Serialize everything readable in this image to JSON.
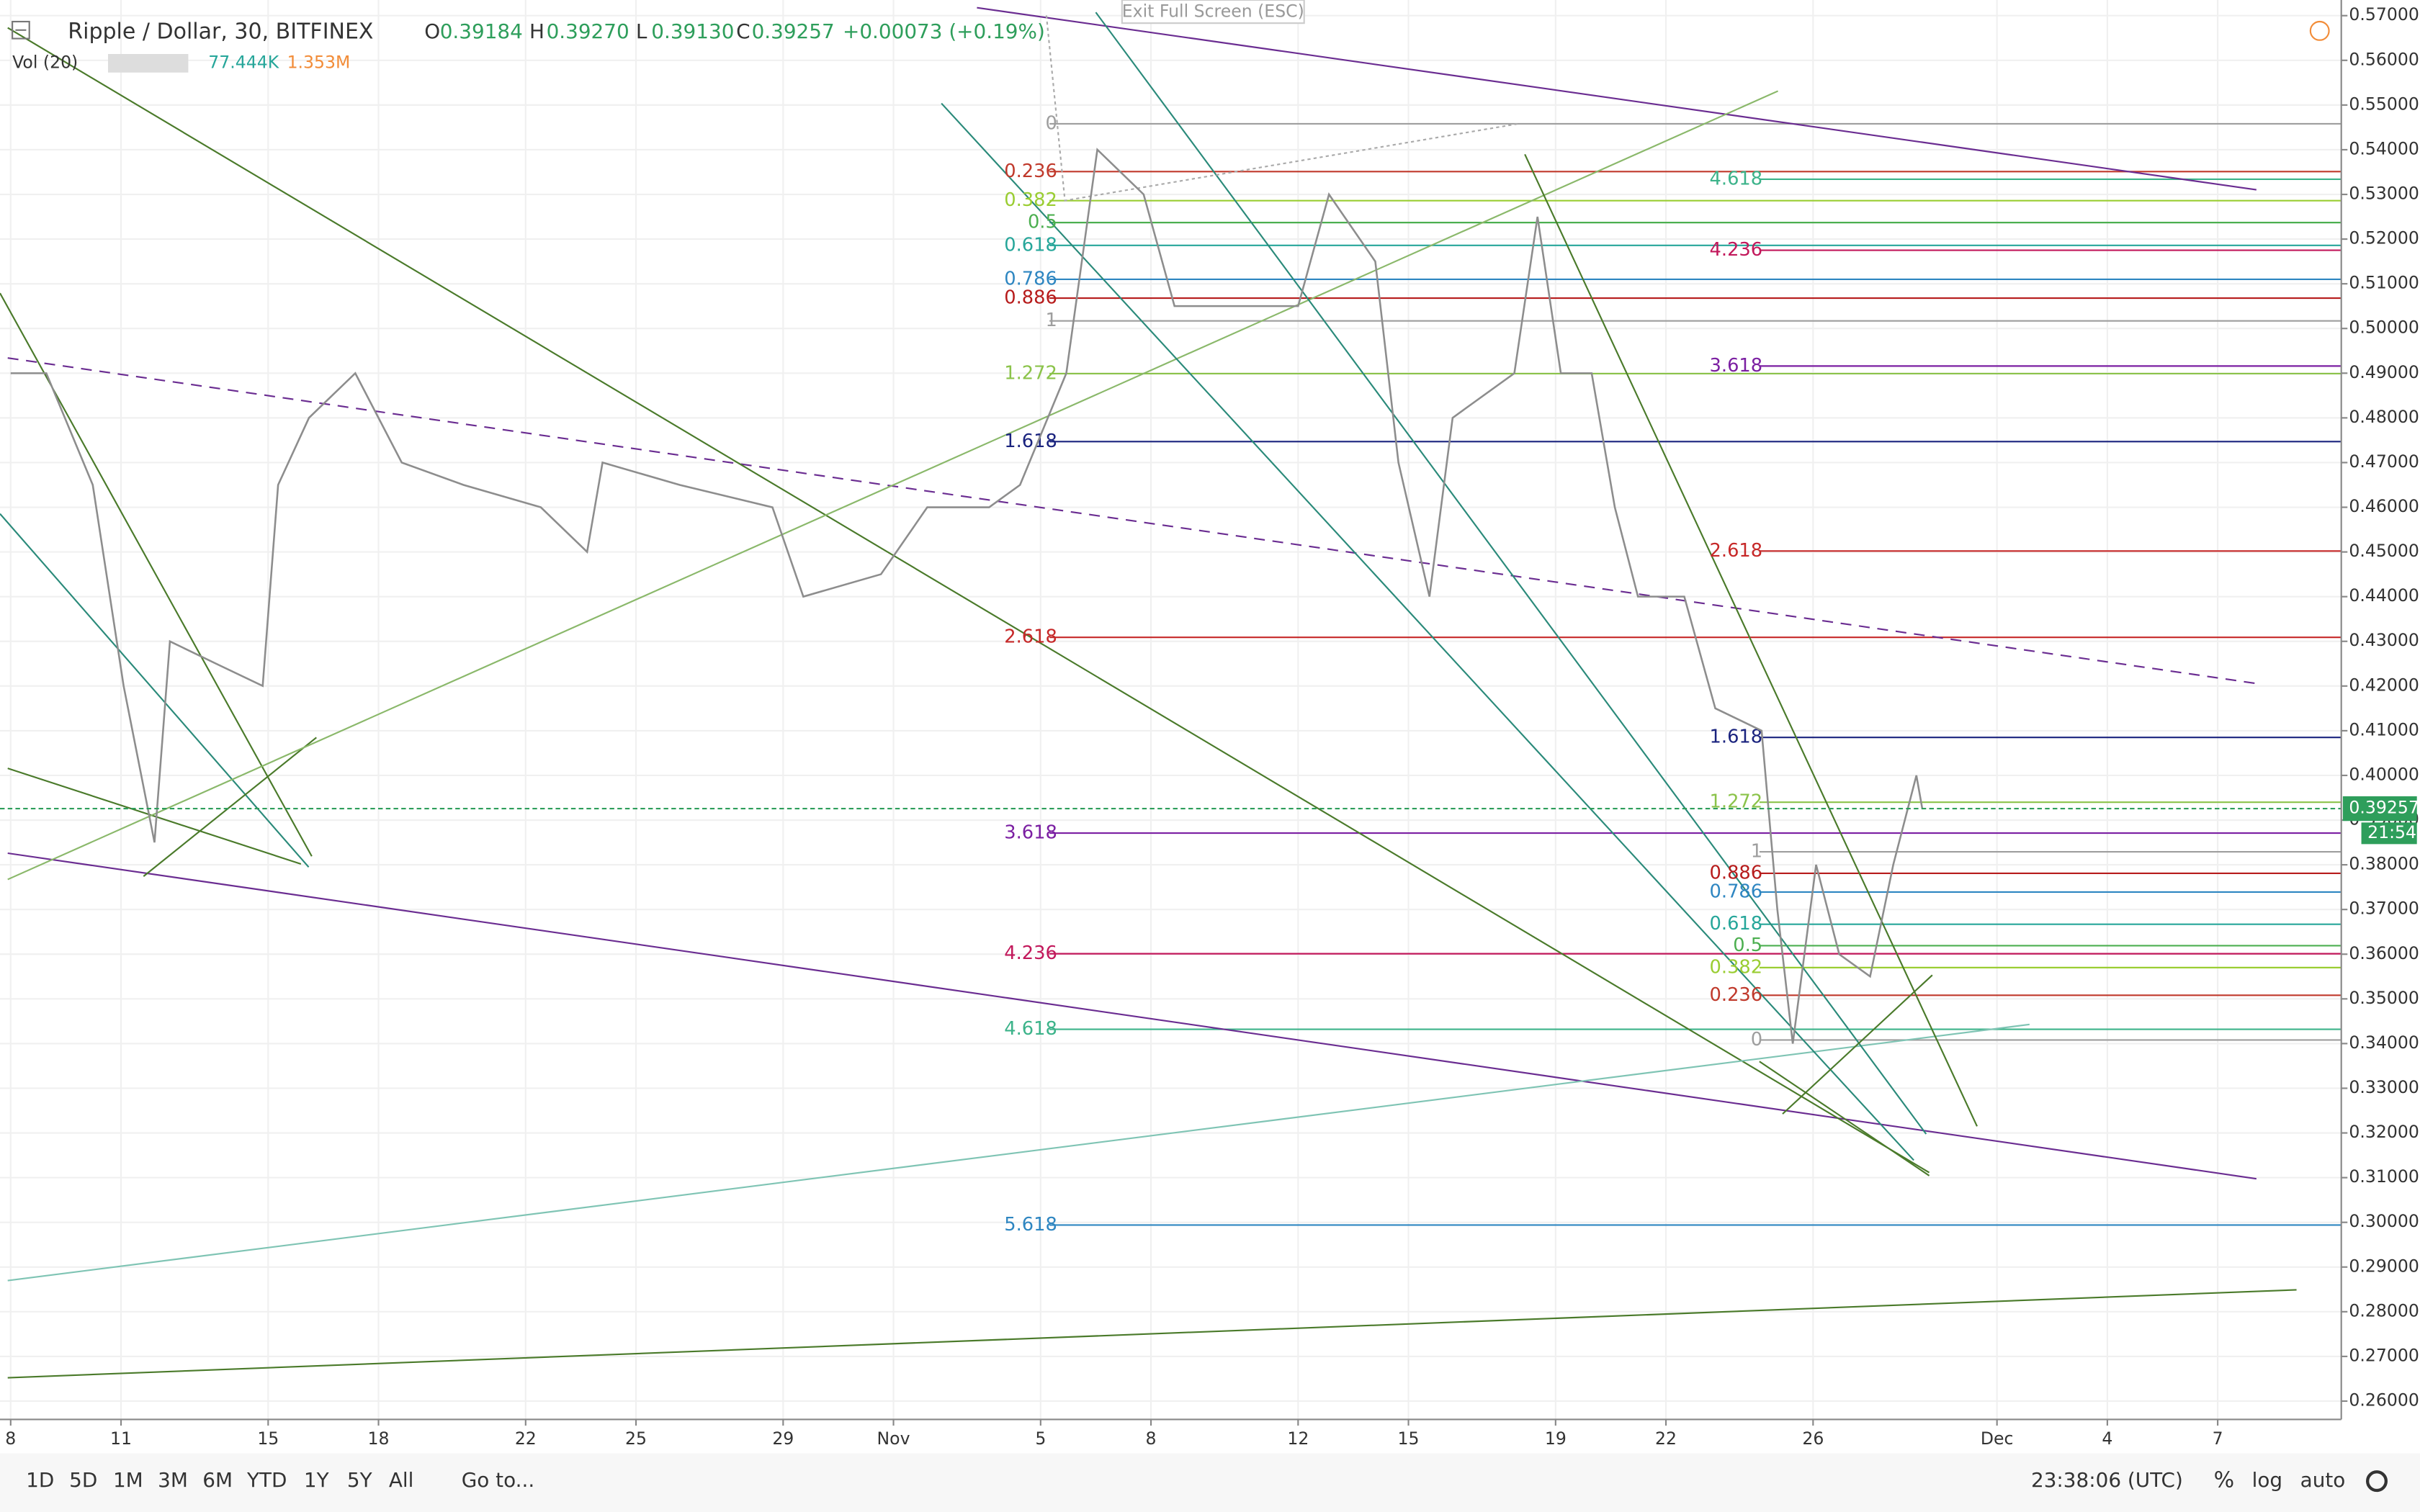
{
  "header": {
    "title": "Ripple / Dollar, 30, BITFINEX",
    "o_label": "O",
    "open": "0.39184",
    "h_label": "H",
    "high": "0.39270",
    "l_label": "L",
    "low": "0.39130",
    "c_label": "C",
    "close": "0.39257",
    "change": "+0.00073 (+0.19%)",
    "vol_label": "Vol (20)",
    "vol_value": "77.444K",
    "vol_ma": "1.353M",
    "exit": "Exit Full Screen (ESC)"
  },
  "chart_data": {
    "type": "line",
    "x": [
      0,
      0.97,
      2.23,
      3.07,
      3.91,
      4.33,
      5.59,
      6.85,
      7.27,
      8.11,
      9.37,
      10.63,
      12.31,
      14.41,
      15.67,
      16.09,
      18.19,
      20.71,
      21.55,
      23.66,
      24.92,
      26.6,
      27.44,
      28.7,
      29.54,
      30.8,
      31.64,
      33.32,
      35.0,
      35.84,
      37.1,
      37.73,
      38.57,
      39.2,
      40.88,
      41.51,
      42.14,
      42.98,
      43.61,
      44.24,
      45.5,
      46.34,
      47.6,
      48.03,
      48.45,
      49.08,
      49.71,
      50.55,
      51.18,
      51.81,
      51.97
    ],
    "series": [
      {
        "color": "#8d8d8d",
        "values": [
          0.49,
          0.49,
          0.465,
          0.42,
          0.385,
          0.43,
          0.425,
          0.42,
          0.465,
          0.48,
          0.49,
          0.47,
          0.465,
          0.46,
          0.45,
          0.47,
          0.465,
          0.46,
          0.44,
          0.445,
          0.46,
          0.46,
          0.465,
          0.49,
          0.54,
          0.53,
          0.505,
          0.505,
          0.505,
          0.53,
          0.515,
          0.47,
          0.44,
          0.48,
          0.49,
          0.525,
          0.49,
          0.49,
          0.46,
          0.44,
          0.44,
          0.415,
          0.41,
          0.37,
          0.34,
          0.38,
          0.36,
          0.355,
          0.38,
          0.4,
          0.39257
        ]
      }
    ],
    "xlim": [
      -0.29,
      63.36
    ],
    "xticks": [
      {
        "value": 0,
        "label": "8"
      },
      {
        "value": 3,
        "label": "11"
      },
      {
        "value": 7,
        "label": "15"
      },
      {
        "value": 10,
        "label": "18"
      },
      {
        "value": 14,
        "label": "22"
      },
      {
        "value": 17,
        "label": "25"
      },
      {
        "value": 21,
        "label": "29"
      },
      {
        "value": 24,
        "label": "Nov"
      },
      {
        "value": 28,
        "label": "5"
      },
      {
        "value": 31,
        "label": "8"
      },
      {
        "value": 35,
        "label": "12"
      },
      {
        "value": 38,
        "label": "15"
      },
      {
        "value": 42,
        "label": "19"
      },
      {
        "value": 45,
        "label": "22"
      },
      {
        "value": 49,
        "label": "26"
      },
      {
        "value": 54,
        "label": "Dec"
      },
      {
        "value": 57,
        "label": "4"
      },
      {
        "value": 60,
        "label": "7"
      }
    ],
    "ylim": [
      0.2559,
      0.5735
    ],
    "yticks": [
      {
        "value": 0.26,
        "label": "0.26000"
      },
      {
        "value": 0.27,
        "label": "0.27000"
      },
      {
        "value": 0.28,
        "label": "0.28000"
      },
      {
        "value": 0.29,
        "label": "0.29000"
      },
      {
        "value": 0.3,
        "label": "0.30000"
      },
      {
        "value": 0.31,
        "label": "0.31000"
      },
      {
        "value": 0.32,
        "label": "0.32000"
      },
      {
        "value": 0.33,
        "label": "0.33000"
      },
      {
        "value": 0.34,
        "label": "0.34000"
      },
      {
        "value": 0.35,
        "label": "0.35000"
      },
      {
        "value": 0.36,
        "label": "0.36000"
      },
      {
        "value": 0.37,
        "label": "0.37000"
      },
      {
        "value": 0.38,
        "label": "0.38000"
      },
      {
        "value": 0.39,
        "label": "0.39000"
      },
      {
        "value": 0.4,
        "label": "0.40000"
      },
      {
        "value": 0.41,
        "label": "0.41000"
      },
      {
        "value": 0.42,
        "label": "0.42000"
      },
      {
        "value": 0.43,
        "label": "0.43000"
      },
      {
        "value": 0.44,
        "label": "0.44000"
      },
      {
        "value": 0.45,
        "label": "0.45000"
      },
      {
        "value": 0.46,
        "label": "0.46000"
      },
      {
        "value": 0.47,
        "label": "0.47000"
      },
      {
        "value": 0.48,
        "label": "0.48000"
      },
      {
        "value": 0.49,
        "label": "0.49000"
      },
      {
        "value": 0.5,
        "label": "0.50000"
      },
      {
        "value": 0.51,
        "label": "0.51000"
      },
      {
        "value": 0.52,
        "label": "0.52000"
      },
      {
        "value": 0.53,
        "label": "0.53000"
      },
      {
        "value": 0.54,
        "label": "0.54000"
      },
      {
        "value": 0.55,
        "label": "0.55000"
      },
      {
        "value": 0.56,
        "label": "0.56000"
      },
      {
        "value": 0.57,
        "label": "0.57000"
      }
    ],
    "grid": true,
    "last_price": 0.39257,
    "last_price_color": "#2e9e5b",
    "countdown": "21:54",
    "fib": [
      {
        "levels": [
          {
            "ratio": 0,
            "price": 0.5458,
            "color": "#9e9e9e"
          },
          {
            "ratio": 0.236,
            "price": 0.5351,
            "color": "#c0392b"
          },
          {
            "ratio": 0.382,
            "price": 0.5286,
            "color": "#9acd32"
          },
          {
            "ratio": 0.5,
            "price": 0.5237,
            "color": "#4caf50"
          },
          {
            "ratio": 0.618,
            "price": 0.5186,
            "color": "#26a69a"
          },
          {
            "ratio": 0.786,
            "price": 0.511,
            "color": "#2e86c1"
          },
          {
            "ratio": 0.886,
            "price": 0.5068,
            "color": "#b71c1c"
          },
          {
            "ratio": 1,
            "price": 0.5017,
            "color": "#9e9e9e"
          },
          {
            "ratio": 1.272,
            "price": 0.4899,
            "color": "#8bc34a"
          },
          {
            "ratio": 1.618,
            "price": 0.4747,
            "color": "#1a237e"
          },
          {
            "ratio": 2.618,
            "price": 0.4309,
            "color": "#c62828"
          },
          {
            "ratio": 3.618,
            "price": 0.3871,
            "color": "#7b1fa2"
          },
          {
            "ratio": 4.236,
            "price": 0.3601,
            "color": "#c2185b"
          },
          {
            "ratio": 4.618,
            "price": 0.3432,
            "color": "#3cb38a"
          },
          {
            "ratio": 5.618,
            "price": 0.2994,
            "color": "#2e86c1"
          }
        ]
      },
      {
        "levels": [
          {
            "ratio": 0,
            "price": 0.3408,
            "color": "#9e9e9e"
          },
          {
            "ratio": 0.236,
            "price": 0.3508,
            "color": "#c0392b"
          },
          {
            "ratio": 0.382,
            "price": 0.357,
            "color": "#9acd32"
          },
          {
            "ratio": 0.5,
            "price": 0.3619,
            "color": "#4caf50"
          },
          {
            "ratio": 0.618,
            "price": 0.3667,
            "color": "#26a69a"
          },
          {
            "ratio": 0.786,
            "price": 0.3739,
            "color": "#2e86c1"
          },
          {
            "ratio": 0.886,
            "price": 0.3781,
            "color": "#b71c1c"
          },
          {
            "ratio": 1,
            "price": 0.3829,
            "color": "#9e9e9e"
          },
          {
            "ratio": 1.272,
            "price": 0.394,
            "color": "#8bc34a"
          },
          {
            "ratio": 1.618,
            "price": 0.4085,
            "color": "#1a237e"
          },
          {
            "ratio": 2.618,
            "price": 0.4502,
            "color": "#c62828"
          },
          {
            "ratio": 3.618,
            "price": 0.4916,
            "color": "#7b1fa2"
          },
          {
            "ratio": 4.236,
            "price": 0.5175,
            "color": "#c2185b"
          },
          {
            "ratio": 4.618,
            "price": 0.5334,
            "color": "#3cb38a"
          }
        ]
      }
    ]
  },
  "toolbar": {
    "ranges": [
      "1D",
      "5D",
      "1M",
      "3M",
      "6M",
      "YTD",
      "1Y",
      "5Y",
      "All"
    ],
    "goto": "Go to...",
    "time": "23:38:06 (UTC)",
    "percent": "%",
    "log": "log",
    "auto": "auto"
  }
}
